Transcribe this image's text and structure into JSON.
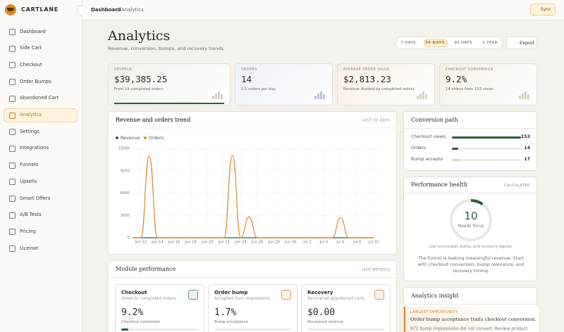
{
  "sidebar": {
    "brand": "CARTLANE",
    "nav": [
      {
        "label": "Dashboard"
      },
      {
        "label": "Side Cart"
      },
      {
        "label": "Checkout"
      },
      {
        "label": "Order Bumps"
      },
      {
        "label": "Abandoned Cart"
      },
      {
        "label": "Analytics",
        "active": true
      },
      {
        "label": "Settings"
      },
      {
        "label": "Integrations"
      },
      {
        "label": "Funnels"
      },
      {
        "label": "Upsells"
      },
      {
        "label": "Smart Offers"
      },
      {
        "label": "A/B Tests"
      },
      {
        "label": "Pricing"
      },
      {
        "label": "License"
      }
    ]
  },
  "topbar": {
    "breadcrumb": [
      "Dashboard",
      "Analytics"
    ],
    "sync": "Sync"
  },
  "header": {
    "title": "Analytics",
    "subtitle": "Revenue, conversion, bumps, and recovery trends.",
    "ranges": [
      {
        "label": "7 DAYS"
      },
      {
        "label": "30 DAYS",
        "active": true
      },
      {
        "label": "90 DAYS"
      },
      {
        "label": "1 YEAR"
      }
    ],
    "export": "Export"
  },
  "kpis": [
    {
      "label": "REVENUE",
      "value": "$39,385.25",
      "note": "From 14 completed orders"
    },
    {
      "label": "ORDERS",
      "value": "14",
      "note": "0.5 orders per day"
    },
    {
      "label": "AVERAGE ORDER VALUE",
      "value": "$2,813.23",
      "note": "Revenue divided by completed orders"
    },
    {
      "label": "CHECKOUT CONVERSION",
      "value": "9.2%",
      "note": "14 orders from 153 views"
    }
  ],
  "chart_data": {
    "type": "line",
    "title": "Revenue and orders trend",
    "subtitle": "LAST 30 DAYS",
    "categories": [
      null,
      "Jun 12",
      null,
      "Jun 14",
      null,
      "Jun 16",
      null,
      "Jun 18",
      null,
      "Jun 20",
      null,
      "Jun 22",
      null,
      "Jun 24",
      null,
      "Jun 26",
      null,
      "Jun 28",
      null,
      "Jun 30",
      null,
      "Jul 2",
      null,
      "Jul 4",
      null,
      "Jul 6",
      null,
      "Jul 8",
      null,
      "Jul 10"
    ],
    "series": [
      {
        "name": "Revenue",
        "color": "#2f5d3a",
        "values": [
          0,
          0,
          0,
          0,
          0,
          0,
          0,
          0,
          0,
          0,
          0,
          0,
          0,
          0,
          0,
          0,
          0,
          0,
          0,
          0,
          0,
          0,
          0,
          0,
          0,
          0,
          0,
          0,
          0,
          0
        ]
      },
      {
        "name": "Orders",
        "color": "#d98a2b",
        "values": [
          0,
          0,
          11000,
          0,
          0,
          0,
          0,
          0,
          0,
          0,
          0,
          0,
          11100,
          0,
          2800,
          0,
          0,
          0,
          0,
          0,
          0,
          0,
          0,
          0,
          0,
          2700,
          0,
          0,
          0,
          0
        ]
      }
    ],
    "ylim": [
      0,
      12000
    ],
    "yticks": [
      0,
      3000,
      6000,
      9000,
      12000
    ],
    "grid": true,
    "legend": "top-left"
  },
  "conversion": {
    "title": "Conversion path",
    "rows": [
      {
        "label": "Checkout views",
        "value": 153
      },
      {
        "label": "Orders",
        "value": 14
      },
      {
        "label": "Bump accepts",
        "value": 17
      }
    ]
  },
  "health": {
    "title": "Performance health",
    "badge": "CALCULATED",
    "score": "10",
    "status": "Needs focus",
    "signals": "Low conversion, bump, and recovery signals",
    "message": "The funnel is leaking meaningful revenue. Start with checkout conversion, bump relevance, and recovery timing."
  },
  "modules": {
    "title": "Module performance",
    "badge": "LIVE METRICS",
    "cards": [
      {
        "title": "Checkout",
        "desc": "Views to completed orders",
        "value": "9.2%",
        "note": "Checkout conversion"
      },
      {
        "title": "Order bump",
        "desc": "Accepted from impressions",
        "value": "1.7%",
        "note": "Bump acceptance"
      },
      {
        "title": "Recovery",
        "desc": "Recovered abandoned carts",
        "value": "$0.00",
        "note": "Recovered revenue"
      }
    ]
  },
  "insight": {
    "title": "Analytics insight",
    "tag": "LARGEST OPPORTUNITY",
    "headline": "Order bump acceptance trails checkout conversion.",
    "body": "971 bump impressions did not convert. Review product"
  }
}
